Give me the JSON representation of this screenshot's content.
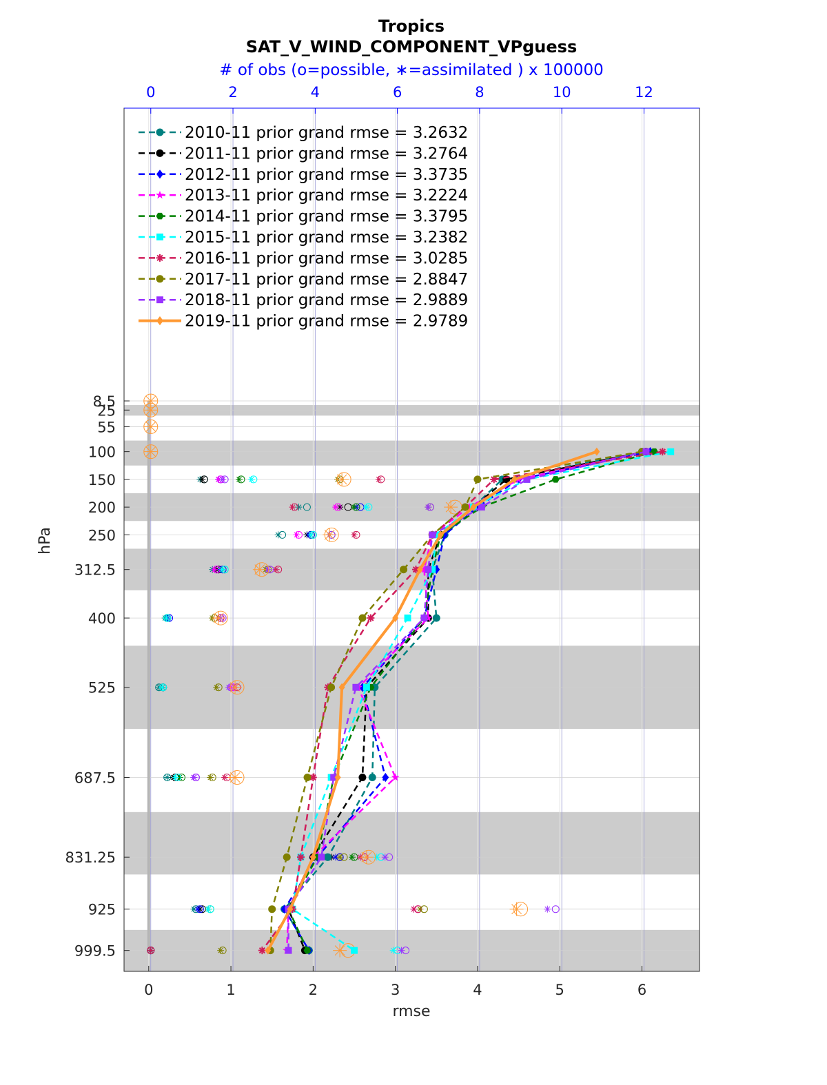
{
  "chart_data": {
    "type": "line",
    "title": "Tropics",
    "subtitle": "SAT_V_WIND_COMPONENT_VPguess",
    "top_axis_label": "# of obs (o=possible, ∗=assimilated ) x 100000",
    "xlabel": "rmse",
    "ylabel": "hPa",
    "xlim": [
      -0.3,
      6.7
    ],
    "x_ticks": [
      0,
      1,
      2,
      3,
      4,
      5,
      6
    ],
    "top_xlim": [
      -0.65,
      13.35
    ],
    "top_ticks": [
      0,
      2,
      4,
      6,
      8,
      10,
      12
    ],
    "y_ticks": [
      "8.5",
      "25",
      "55",
      "100",
      "150",
      "200",
      "250",
      "312.5",
      "400",
      "525",
      "687.5",
      "831.25",
      "925",
      "999.5"
    ],
    "levels": [
      8.5,
      25,
      55,
      100,
      150,
      200,
      250,
      312.5,
      400,
      525,
      687.5,
      831.25,
      925,
      999.5
    ],
    "shaded_bands": [
      [
        16,
        35
      ],
      [
        80,
        125
      ],
      [
        175,
        225
      ],
      [
        275,
        350
      ],
      [
        450,
        600
      ],
      [
        750,
        862.5
      ],
      [
        962.5,
        1037
      ]
    ],
    "grid": true,
    "legend_position": "top-left",
    "series": [
      {
        "name": "2010-11 prior grand rmse = 3.2632",
        "color": "#008080",
        "marker": "circle",
        "style": "dashed",
        "levels": [
          100,
          150,
          200,
          250,
          312.5,
          400,
          525,
          687.5,
          831.25,
          925,
          999.5
        ],
        "values": [
          6.0,
          4.3,
          3.95,
          3.6,
          3.45,
          3.5,
          2.75,
          2.72,
          2.18,
          1.65,
          1.95
        ],
        "obs_levels": [
          150,
          200,
          250,
          312.5,
          400,
          525,
          687.5,
          831.25,
          925,
          999.5
        ],
        "obs_possible": [
          1.3,
          3.8,
          3.2,
          1.6,
          0.4,
          0.2,
          0.4,
          4.3,
          1.1,
          0.0
        ],
        "obs_assim": [
          1.2,
          3.6,
          3.1,
          1.5,
          0.35,
          0.2,
          0.4,
          4.1,
          1.05,
          0.0
        ]
      },
      {
        "name": "2011-11 prior grand rmse = 3.2764",
        "color": "#000000",
        "marker": "circle",
        "style": "dashed",
        "levels": [
          100,
          150,
          200,
          250,
          312.5,
          400,
          525,
          687.5,
          831.25,
          925,
          999.5
        ],
        "values": [
          6.05,
          4.35,
          3.95,
          3.55,
          3.4,
          3.4,
          2.65,
          2.6,
          2.0,
          1.7,
          1.9
        ],
        "obs_levels": [
          150,
          200,
          250,
          312.5,
          400,
          525,
          687.5,
          831.25,
          925,
          999.5
        ],
        "obs_possible": [
          1.3,
          4.8,
          3.9,
          1.65,
          0.4,
          0.3,
          0.6,
          4.6,
          1.25,
          0.0
        ],
        "obs_assim": [
          1.25,
          4.6,
          3.8,
          1.6,
          0.38,
          0.28,
          0.55,
          4.4,
          1.2,
          0.0
        ]
      },
      {
        "name": "2012-11 prior grand rmse = 3.3735",
        "color": "#0000ff",
        "marker": "diamond",
        "style": "dashed",
        "levels": [
          100,
          150,
          200,
          250,
          312.5,
          400,
          525,
          687.5,
          831.25,
          925,
          999.5
        ],
        "values": [
          6.1,
          4.5,
          4.0,
          3.6,
          3.5,
          3.35,
          2.6,
          2.88,
          2.05,
          1.65,
          1.95
        ],
        "obs_levels": [
          150,
          200,
          250,
          312.5,
          400,
          525,
          687.5,
          831.25,
          925,
          999.5
        ],
        "obs_possible": [
          1.7,
          5.1,
          3.9,
          1.75,
          0.45,
          0.3,
          1.1,
          4.6,
          1.2,
          0.0
        ],
        "obs_assim": [
          1.65,
          5.0,
          3.85,
          1.7,
          0.42,
          0.28,
          1.05,
          4.5,
          1.15,
          0.0
        ]
      },
      {
        "name": "2013-11 prior grand rmse = 3.2224",
        "color": "#ff00ff",
        "marker": "star",
        "style": "dashed",
        "levels": [
          100,
          150,
          200,
          250,
          312.5,
          400,
          525,
          687.5,
          831.25,
          925,
          999.5
        ],
        "values": [
          6.05,
          4.5,
          3.9,
          3.45,
          3.35,
          3.4,
          2.55,
          3.0,
          2.0,
          1.7,
          1.68
        ],
        "obs_levels": [
          150,
          200,
          250,
          312.5,
          400,
          525,
          687.5,
          831.25,
          925,
          999.5
        ],
        "obs_possible": [
          1.7,
          4.55,
          3.6,
          1.6,
          1.7,
          2.0,
          1.1,
          5.2,
          6.5,
          0.0
        ],
        "obs_assim": [
          1.65,
          4.5,
          3.55,
          1.55,
          1.65,
          1.95,
          1.05,
          5.1,
          6.4,
          0.0
        ]
      },
      {
        "name": "2014-11 prior grand rmse = 3.3795",
        "color": "#008000",
        "marker": "hexagon",
        "style": "dashed",
        "levels": [
          100,
          150,
          200,
          250,
          312.5,
          400,
          525,
          687.5,
          831.25,
          925,
          999.5
        ],
        "values": [
          6.15,
          4.95,
          4.05,
          3.55,
          3.45,
          3.35,
          2.7,
          2.25,
          2.05,
          1.7,
          1.93
        ],
        "obs_levels": [
          150,
          200,
          250,
          312.5,
          400,
          525,
          687.5,
          831.25,
          925,
          999.5
        ],
        "obs_possible": [
          2.2,
          5.0,
          3.95,
          1.8,
          0.4,
          0.3,
          0.75,
          4.95,
          1.45,
          0.0
        ],
        "obs_assim": [
          2.15,
          4.95,
          3.9,
          1.75,
          0.38,
          0.28,
          0.7,
          4.9,
          1.4,
          0.0
        ]
      },
      {
        "name": "2015-11 prior grand rmse = 3.2382",
        "color": "#00ffff",
        "marker": "square",
        "style": "dashed",
        "levels": [
          100,
          150,
          200,
          250,
          312.5,
          400,
          525,
          687.5,
          831.25,
          925,
          999.5
        ],
        "values": [
          6.35,
          4.6,
          3.95,
          3.5,
          3.45,
          3.15,
          2.65,
          2.22,
          1.85,
          1.75,
          2.5
        ],
        "obs_levels": [
          150,
          200,
          250,
          312.5,
          400,
          525,
          687.5,
          831.25,
          925,
          999.5
        ],
        "obs_possible": [
          2.5,
          5.3,
          3.95,
          1.8,
          0.4,
          0.3,
          0.65,
          5.6,
          1.45,
          6.0
        ],
        "obs_assim": [
          2.45,
          5.25,
          3.9,
          1.75,
          0.38,
          0.28,
          0.6,
          5.5,
          1.4,
          5.9
        ]
      },
      {
        "name": "2016-11 prior grand rmse = 3.0285",
        "color": "#d01c5a",
        "marker": "asterisk",
        "style": "dashed",
        "levels": [
          100,
          150,
          200,
          250,
          312.5,
          400,
          525,
          687.5,
          831.25,
          925,
          999.5
        ],
        "values": [
          6.25,
          4.2,
          3.85,
          3.45,
          3.25,
          2.7,
          2.18,
          2.0,
          1.85,
          1.75,
          1.38
        ],
        "obs_levels": [
          150,
          200,
          250,
          312.5,
          400,
          525,
          687.5,
          831.25,
          925,
          999.5
        ],
        "obs_possible": [
          5.6,
          3.5,
          5.0,
          3.1,
          1.7,
          2.1,
          1.85,
          5.2,
          6.5,
          0.0
        ],
        "obs_assim": [
          5.55,
          3.45,
          4.95,
          3.05,
          1.65,
          2.05,
          1.8,
          5.1,
          6.4,
          0.0
        ]
      },
      {
        "name": "2017-11 prior grand rmse = 2.8847",
        "color": "#808000",
        "marker": "circle",
        "style": "dashed",
        "levels": [
          100,
          150,
          200,
          250,
          312.5,
          400,
          525,
          687.5,
          831.25,
          925,
          999.5
        ],
        "values": [
          6.0,
          4.0,
          3.85,
          3.45,
          3.1,
          2.6,
          2.22,
          1.93,
          1.68,
          1.5,
          1.48
        ],
        "obs_levels": [
          150,
          200,
          250,
          312.5,
          400,
          525,
          687.5,
          831.25,
          925,
          999.5
        ],
        "obs_possible": [
          4.6,
          6.8,
          4.4,
          2.85,
          1.55,
          1.65,
          1.5,
          4.7,
          6.65,
          1.75
        ],
        "obs_assim": [
          4.55,
          6.75,
          4.35,
          2.8,
          1.5,
          1.6,
          1.45,
          4.6,
          6.55,
          1.7
        ]
      },
      {
        "name": "2018-11 prior grand rmse = 2.9889",
        "color": "#9933ff",
        "marker": "square",
        "style": "dashed",
        "levels": [
          100,
          150,
          200,
          250,
          312.5,
          400,
          525,
          687.5,
          831.25,
          925,
          999.5
        ],
        "values": [
          6.05,
          4.6,
          4.05,
          3.45,
          3.4,
          3.35,
          2.52,
          2.25,
          2.1,
          1.7,
          1.7
        ],
        "obs_levels": [
          150,
          200,
          250,
          312.5,
          400,
          525,
          687.5,
          831.25,
          925,
          999.5
        ],
        "obs_possible": [
          1.8,
          6.8,
          4.4,
          2.9,
          1.75,
          1.95,
          1.1,
          5.8,
          9.85,
          6.2
        ],
        "obs_assim": [
          1.75,
          6.75,
          4.35,
          2.85,
          1.7,
          1.9,
          1.05,
          5.7,
          9.65,
          6.1
        ]
      },
      {
        "name": "2019-11 prior grand rmse = 2.9789",
        "color": "#ff9933",
        "marker": "diamond",
        "style": "solid",
        "levels": [
          100,
          150,
          200,
          250,
          312.5,
          400,
          525,
          687.5,
          831.25,
          925,
          999.5
        ],
        "values": [
          5.45,
          4.45,
          3.95,
          3.55,
          3.3,
          3.0,
          2.35,
          2.3,
          2.0,
          1.72,
          1.45
        ],
        "obs_levels": [
          8.5,
          25,
          55,
          100,
          150,
          200,
          250,
          312.5,
          400,
          525,
          687.5,
          831.25,
          925,
          999.5
        ],
        "obs_possible": [
          0.0,
          0.0,
          0.0,
          0.0,
          4.7,
          7.4,
          4.4,
          2.7,
          1.7,
          2.1,
          2.1,
          5.3,
          9.0,
          4.8
        ],
        "obs_assim": [
          0.0,
          0.0,
          0.0,
          0.0,
          4.65,
          7.3,
          4.35,
          2.65,
          1.65,
          2.05,
          2.05,
          5.25,
          8.9,
          4.6
        ]
      }
    ]
  }
}
